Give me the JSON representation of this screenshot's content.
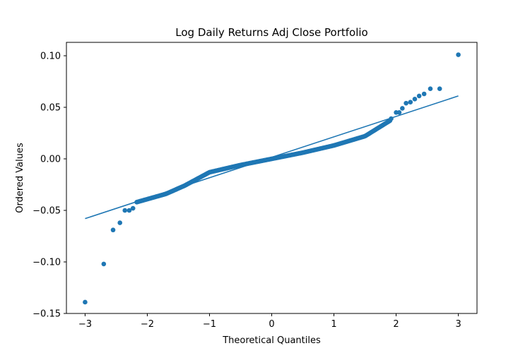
{
  "chart_data": {
    "type": "scatter",
    "title": "Log Daily Returns Adj Close Portfolio",
    "xlabel": "Theoretical Quantiles",
    "ylabel": "Ordered Values",
    "xlim": [
      -3.3,
      3.3
    ],
    "ylim": [
      -0.15,
      0.113
    ],
    "xticks": [
      -3,
      -2,
      -1,
      0,
      1,
      2,
      3
    ],
    "xtick_labels": [
      "−3",
      "−2",
      "−1",
      "0",
      "1",
      "2",
      "3"
    ],
    "yticks": [
      -0.15,
      -0.1,
      -0.05,
      0.0,
      0.05,
      0.1
    ],
    "ytick_labels": [
      "−0.15",
      "−0.10",
      "−0.05",
      "0.00",
      "0.05",
      "0.10"
    ],
    "grid": false,
    "marker_color": "#1f77b4",
    "line_color": "#1f77b4",
    "fit_line": {
      "x": [
        -3.0,
        3.0
      ],
      "y": [
        -0.058,
        0.061
      ]
    },
    "tail_points": {
      "x": [
        -3.0,
        -2.7,
        -2.55,
        -2.44,
        -2.36,
        -2.29,
        -2.23,
        1.92,
        2.0,
        2.05,
        2.1,
        2.16,
        2.23,
        2.3,
        2.37,
        2.45,
        2.55,
        2.7,
        3.0
      ],
      "y": [
        -0.139,
        -0.102,
        -0.069,
        -0.062,
        -0.05,
        -0.05,
        -0.048,
        0.039,
        0.045,
        0.045,
        0.049,
        0.054,
        0.055,
        0.058,
        0.061,
        0.063,
        0.068,
        0.068,
        0.101
      ]
    },
    "body_points": {
      "x_range": [
        -2.17,
        1.9
      ],
      "count": 250,
      "shape_knots_x": [
        -2.17,
        -1.7,
        -1.4,
        -1.0,
        -0.5,
        0.0,
        0.5,
        1.0,
        1.5,
        1.9
      ],
      "shape_knots_y": [
        -0.042,
        -0.034,
        -0.026,
        -0.013,
        -0.006,
        0.0,
        0.006,
        0.013,
        0.022,
        0.037
      ]
    }
  }
}
